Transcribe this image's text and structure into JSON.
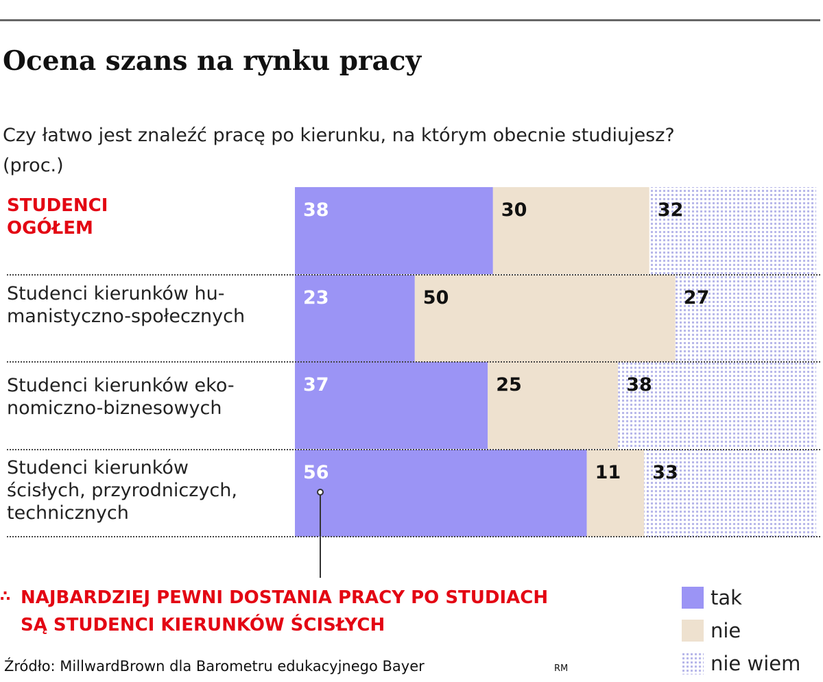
{
  "header": {
    "title": "Ocena szans na rynku pracy",
    "subtitle_line1": "Czy łatwo jest znaleźć pracę po kierunku, na którym obecnie studiujesz?",
    "subtitle_line2": "(proc.)"
  },
  "rows": [
    {
      "label_lines": [
        "STUDENCI",
        "OGÓŁEM"
      ],
      "highlight": true
    },
    {
      "label_lines": [
        "Studenci kierunków hu-",
        "manistyczno-społecznych"
      ],
      "highlight": false
    },
    {
      "label_lines": [
        "Studenci kierunków eko-",
        "nomiczno-biznesowych"
      ],
      "highlight": false
    },
    {
      "label_lines": [
        "Studenci kierunków",
        "ścisłych, przyrodniczych,",
        "technicznych"
      ],
      "highlight": false
    }
  ],
  "chart_data": {
    "type": "bar",
    "orientation": "horizontal",
    "stacked": true,
    "unit": "proc.",
    "categories": [
      "STUDENCI OGÓŁEM",
      "Studenci kierunków humanistyczno-społecznych",
      "Studenci kierunków ekonomiczno-biznesowych",
      "Studenci kierunków ścisłych, przyrodniczych, technicznych"
    ],
    "series": [
      {
        "name": "tak",
        "values": [
          38,
          23,
          37,
          56
        ],
        "color": "#9b94f5",
        "label_color": "#ffffff"
      },
      {
        "name": "nie",
        "values": [
          30,
          50,
          25,
          11
        ],
        "color": "#eee1cf",
        "label_color": "#111111"
      },
      {
        "name": "nie wiem",
        "values": [
          32,
          27,
          38,
          33
        ],
        "color": "#c8c8ef",
        "pattern": "dots",
        "label_color": "#111111"
      }
    ],
    "xlim": [
      0,
      100
    ],
    "grid": false,
    "legend_position": "bottom-right"
  },
  "annotation": {
    "marker": "∴",
    "line1": "NAJBARDZIEJ PEWNI DOSTANIA PRACY PO STUDIACH",
    "line2": "SĄ STUDENCI KIERUNKÓW ŚCISŁYCH"
  },
  "legend": {
    "items": [
      "tak",
      "nie",
      "nie wiem"
    ]
  },
  "source": {
    "text": "Źródło: MillwardBrown dla Barometru edukacyjnego Bayer",
    "sign": "RM"
  },
  "colors": {
    "accent_red": "#e30613",
    "tak": "#9b94f5",
    "nie": "#eee1cf",
    "nie_wiem_dots": "#b8b8ea"
  }
}
